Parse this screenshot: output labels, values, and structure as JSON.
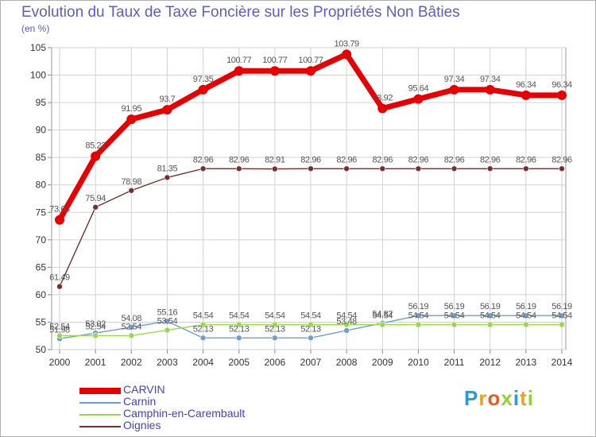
{
  "header": {
    "title": "Evolution du Taux de Taxe Foncière sur les Propriétés Non Bâties",
    "unit": "(en %)"
  },
  "logo": {
    "text": "Proxiti"
  },
  "chart_data": {
    "type": "line",
    "title": "Evolution du Taux de Taxe Foncière sur les Propriétés Non Bâties",
    "ylabel": "(en %)",
    "xlabel": "",
    "ylim": [
      50,
      105
    ],
    "yticks": [
      50,
      55,
      60,
      65,
      70,
      75,
      80,
      85,
      90,
      95,
      100,
      105
    ],
    "grid": true,
    "legend_position": "bottom-left",
    "categories": [
      "2000",
      "2001",
      "2002",
      "2003",
      "2004",
      "2005",
      "2006",
      "2007",
      "2008",
      "2009",
      "2010",
      "2011",
      "2012",
      "2013",
      "2014"
    ],
    "series": [
      {
        "name": "CARVIN",
        "color": "#e80000",
        "line_width": 7,
        "marker_radius": 6,
        "values": [
          73.63,
          85.22,
          91.95,
          93.7,
          97.35,
          100.77,
          100.77,
          100.77,
          103.79,
          93.92,
          95.64,
          97.34,
          97.34,
          96.34,
          96.34
        ],
        "labels": [
          "73.63",
          "85.22",
          "91.95",
          "93.7",
          "97.35",
          "100.77",
          "100.77",
          "100.77",
          "103.79",
          "93.92",
          "95.64",
          "97.34",
          "97.34",
          "96.34",
          "96.34"
        ]
      },
      {
        "name": "Carnin",
        "color": "#6a9fd6",
        "line_width": 1.4,
        "marker_radius": 3.5,
        "values": [
          51.98,
          53.02,
          54.08,
          55.16,
          52.13,
          52.13,
          52.13,
          52.13,
          53.48,
          54.82,
          56.19,
          56.19,
          56.19,
          56.19,
          56.19
        ],
        "labels": [
          "51.98",
          "53.02",
          "54.08",
          "55.16",
          "52.13",
          "52.13",
          "52.13",
          "52.13",
          "53.48",
          "54.82",
          "56.19",
          "56.19",
          "56.19",
          "56.19",
          "56.19"
        ]
      },
      {
        "name": "Camphin-en-Carembault",
        "color": "#9ad84a",
        "line_width": 1.4,
        "marker_radius": 3.5,
        "values": [
          52.54,
          52.54,
          52.54,
          53.54,
          54.54,
          54.54,
          54.54,
          54.54,
          54.54,
          54.54,
          54.54,
          54.54,
          54.54,
          54.54,
          54.54
        ],
        "labels": [
          "52.54",
          "52.54",
          "52.54",
          "53.54",
          "54.54",
          "54.54",
          "54.54",
          "54.54",
          "54.54",
          "54.54",
          "54.54",
          "54.54",
          "54.54",
          "54.54",
          "54.54"
        ]
      },
      {
        "name": "Oignies",
        "color": "#7a2d2d",
        "line_width": 1.4,
        "marker_radius": 3.5,
        "values": [
          61.49,
          75.94,
          78.98,
          81.35,
          82.96,
          82.96,
          82.91,
          82.96,
          82.96,
          82.96,
          82.96,
          82.96,
          82.96,
          82.96,
          82.96
        ],
        "labels": [
          "61.49",
          "75.94",
          "78.98",
          "81.35",
          "82.96",
          "82.96",
          "82.91",
          "82.96",
          "82.96",
          "82.96",
          "82.96",
          "82.96",
          "82.96",
          "82.96",
          "82.96"
        ]
      }
    ]
  }
}
